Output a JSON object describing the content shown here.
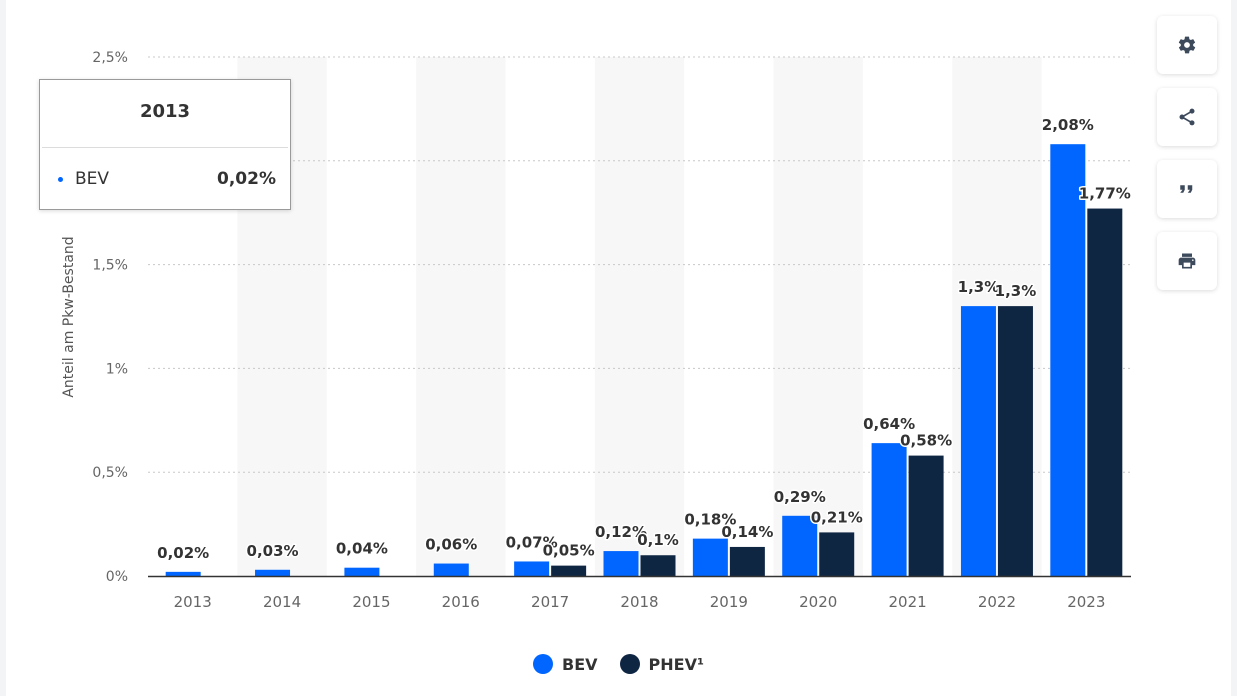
{
  "chart_data": {
    "type": "bar",
    "title": "",
    "xlabel": "",
    "ylabel": "Anteil am Pkw-Bestand",
    "categories": [
      "2013",
      "2014",
      "2015",
      "2016",
      "2017",
      "2018",
      "2019",
      "2020",
      "2021",
      "2022",
      "2023"
    ],
    "series": [
      {
        "name": "BEV",
        "color": "#0066ff",
        "values": [
          0.02,
          0.03,
          0.04,
          0.06,
          0.07,
          0.12,
          0.18,
          0.29,
          0.64,
          1.3,
          2.08
        ],
        "labels": [
          "0,02%",
          "0,03%",
          "0,04%",
          "0,06%",
          "0,07%",
          "0,12%",
          "0,18%",
          "0,29%",
          "0,64%",
          "1,3%",
          "2,08%"
        ]
      },
      {
        "name": "PHEV¹",
        "color": "#0f2643",
        "values": [
          null,
          null,
          null,
          null,
          0.05,
          0.1,
          0.14,
          0.21,
          0.58,
          1.3,
          1.77
        ],
        "labels": [
          "",
          "",
          "",
          "",
          "0,05%",
          "0,1%",
          "0,14%",
          "0,21%",
          "0,58%",
          "1,3%",
          "1,77%"
        ]
      }
    ],
    "ylim": [
      0,
      2.5
    ],
    "yticks": [
      {
        "value": 0,
        "label": "0%"
      },
      {
        "value": 0.5,
        "label": "0,5%"
      },
      {
        "value": 1,
        "label": "1%"
      },
      {
        "value": 1.5,
        "label": "1,5%"
      },
      {
        "value": 2,
        "label": "2%"
      },
      {
        "value": 2.5,
        "label": "2,5%"
      }
    ],
    "grid": true,
    "legend_position": "bottom-center"
  },
  "tooltip": {
    "title": "2013",
    "series_name": "BEV",
    "value": "0,02%"
  },
  "legend": {
    "items": [
      {
        "label": "BEV",
        "color": "#0066ff"
      },
      {
        "label": "PHEV¹",
        "color": "#0f2643"
      }
    ]
  },
  "tools": [
    {
      "name": "settings",
      "icon": "gear-icon"
    },
    {
      "name": "share",
      "icon": "share-icon"
    },
    {
      "name": "cite",
      "icon": "quote-icon"
    },
    {
      "name": "print",
      "icon": "printer-icon"
    }
  ]
}
